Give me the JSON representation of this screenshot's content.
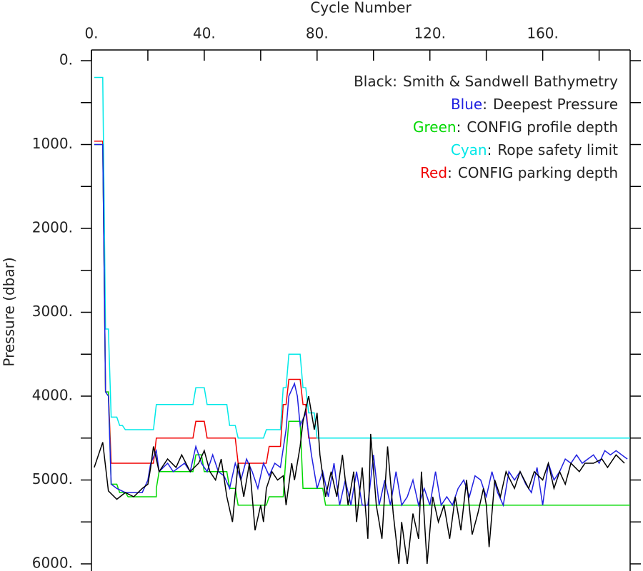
{
  "chart_data": {
    "type": "line",
    "x_label": "Cycle Number",
    "y_label": "Pressure (dbar)",
    "invert_y": true,
    "xlim": [
      0,
      191
    ],
    "ylim": [
      0,
      6000
    ],
    "xticks": [
      {
        "value": 0,
        "label": "0."
      },
      {
        "value": 40,
        "label": "40."
      },
      {
        "value": 80,
        "label": "80."
      },
      {
        "value": 120,
        "label": "120."
      },
      {
        "value": 160,
        "label": "160."
      }
    ],
    "xminorticks": [
      20,
      60,
      100,
      140,
      180
    ],
    "yticks": [
      {
        "value": 0,
        "label": "0."
      },
      {
        "value": 1000,
        "label": "1000."
      },
      {
        "value": 2000,
        "label": "2000."
      },
      {
        "value": 3000,
        "label": "3000."
      },
      {
        "value": 4000,
        "label": "4000."
      },
      {
        "value": 5000,
        "label": "5000."
      },
      {
        "value": 6000,
        "label": "6000."
      }
    ],
    "yminorticks": [
      500,
      1500,
      2500,
      3500,
      4500,
      5500
    ],
    "legend_separator": ":",
    "series": [
      {
        "name": "Smith & Sandwell Bathymetry",
        "color_word": "Black",
        "color": "#000000",
        "x": [
          1,
          4,
          6,
          9,
          12,
          15,
          18,
          20,
          21,
          22,
          24,
          27,
          30,
          32,
          35,
          38,
          40,
          42,
          44,
          46,
          48,
          50,
          52,
          54,
          56,
          58,
          60,
          61,
          62,
          64,
          66,
          68,
          69,
          71,
          72,
          74,
          75,
          77,
          79,
          80,
          81,
          83,
          85,
          87,
          89,
          91,
          93,
          94,
          96,
          98,
          99,
          101,
          103,
          105,
          107,
          109,
          110,
          112,
          114,
          116,
          117,
          119,
          121,
          123,
          125,
          127,
          129,
          131,
          133,
          135,
          137,
          139,
          140,
          141,
          143,
          145,
          147,
          150,
          152,
          155,
          157,
          160,
          162,
          164,
          166,
          168,
          170,
          173,
          175,
          178,
          181,
          183,
          186,
          189
        ],
        "values": [
          4850,
          4550,
          5130,
          5230,
          5150,
          5200,
          5100,
          5050,
          4850,
          4600,
          4900,
          4750,
          4850,
          4700,
          4900,
          4800,
          4650,
          4900,
          5000,
          4750,
          5200,
          5500,
          4800,
          5200,
          4800,
          5600,
          5300,
          5500,
          5100,
          4900,
          5000,
          4950,
          5300,
          4800,
          5000,
          4600,
          4300,
          4000,
          4400,
          4200,
          4700,
          5200,
          4900,
          5200,
          4700,
          5300,
          4900,
          5500,
          4850,
          5700,
          4450,
          5300,
          5700,
          4600,
          5400,
          6000,
          5500,
          6000,
          5400,
          5700,
          4900,
          6000,
          5200,
          5500,
          5300,
          5700,
          5200,
          5600,
          5000,
          5650,
          5400,
          5100,
          5300,
          5800,
          5000,
          5200,
          4900,
          5100,
          4900,
          5100,
          4900,
          5000,
          4800,
          5100,
          4900,
          5050,
          4800,
          4900,
          4800,
          4800,
          4750,
          4850,
          4700,
          4800
        ]
      },
      {
        "name": "Deepest Pressure",
        "color_word": "Blue",
        "color": "#2020e0",
        "x": [
          1,
          4,
          5,
          6,
          7,
          9,
          12,
          15,
          18,
          20,
          21,
          23,
          24,
          27,
          29,
          31,
          33,
          35,
          37,
          39,
          41,
          43,
          45,
          47,
          49,
          51,
          53,
          55,
          57,
          59,
          61,
          63,
          65,
          67,
          69,
          70,
          72,
          73,
          74,
          76,
          78,
          80,
          82,
          84,
          86,
          88,
          90,
          92,
          94,
          96,
          98,
          100,
          102,
          104,
          106,
          108,
          110,
          112,
          114,
          116,
          118,
          120,
          122,
          124,
          126,
          128,
          130,
          132,
          134,
          136,
          138,
          140,
          142,
          144,
          146,
          148,
          150,
          152,
          154,
          156,
          158,
          160,
          162,
          164,
          166,
          168,
          170,
          172,
          174,
          176,
          178,
          180,
          182,
          184,
          186,
          188,
          190
        ],
        "values": [
          1000,
          1000,
          3950,
          4000,
          5050,
          5100,
          5150,
          5150,
          5150,
          5000,
          4800,
          4650,
          4900,
          4800,
          4900,
          4850,
          4800,
          4900,
          4600,
          4800,
          4900,
          4700,
          4900,
          4950,
          5100,
          4800,
          5000,
          4750,
          4900,
          5100,
          4800,
          4950,
          4800,
          4850,
          4400,
          4000,
          3850,
          4000,
          4350,
          4200,
          4700,
          5100,
          4900,
          5200,
          4800,
          5300,
          5000,
          5300,
          4900,
          5300,
          5300,
          4700,
          5300,
          5000,
          5300,
          4900,
          5300,
          5200,
          5000,
          5300,
          5100,
          5300,
          4900,
          5300,
          5200,
          5300,
          5100,
          5000,
          5200,
          4950,
          5000,
          5200,
          4900,
          5150,
          5300,
          4900,
          5000,
          4900,
          5050,
          5150,
          4850,
          5300,
          4800,
          5000,
          4900,
          4750,
          4800,
          4700,
          4800,
          4750,
          4700,
          4800,
          4650,
          4700,
          4650,
          4700,
          4750
        ]
      },
      {
        "name": "CONFIG profile depth",
        "color_word": "Green",
        "color": "#00d800",
        "x": [
          1,
          4,
          5,
          6,
          7,
          9,
          10,
          12,
          13,
          22,
          23,
          23,
          24,
          36,
          37,
          39,
          40,
          48,
          49,
          51,
          52,
          62,
          63,
          68,
          69,
          70,
          74,
          75,
          82,
          83,
          191
        ],
        "values": [
          1000,
          1000,
          3950,
          3950,
          5050,
          5050,
          5150,
          5150,
          5200,
          5200,
          5200,
          5100,
          4900,
          4900,
          4700,
          4700,
          4900,
          4900,
          5100,
          5100,
          5300,
          5300,
          5200,
          5200,
          4700,
          4300,
          4300,
          5100,
          5100,
          5300,
          5300
        ]
      },
      {
        "name": "Rope safety limit",
        "color_word": "Cyan",
        "color": "#00e8e8",
        "x": [
          1,
          4,
          5,
          6,
          7,
          9,
          10,
          11,
          12,
          22,
          23,
          36,
          37,
          40,
          41,
          48,
          49,
          51,
          52,
          61,
          62,
          67,
          68,
          69,
          70,
          74,
          75,
          76,
          77,
          79,
          80,
          191
        ],
        "values": [
          200,
          200,
          3200,
          3200,
          4250,
          4250,
          4350,
          4350,
          4400,
          4400,
          4100,
          4100,
          3900,
          3900,
          4100,
          4100,
          4350,
          4350,
          4500,
          4500,
          4400,
          4400,
          3900,
          3900,
          3500,
          3500,
          3900,
          3900,
          4200,
          4200,
          4500,
          4500
        ]
      },
      {
        "name": "CONFIG parking depth",
        "color_word": "Red",
        "color": "#f00000",
        "x": [
          1,
          4,
          5,
          6,
          7,
          22,
          23,
          36,
          37,
          40,
          41,
          51,
          52,
          62,
          63,
          67,
          68,
          69,
          70,
          74,
          75,
          76,
          77,
          82,
          83,
          191
        ],
        "values": [
          960,
          960,
          3950,
          3950,
          4800,
          4800,
          4500,
          4500,
          4300,
          4300,
          4500,
          4500,
          4800,
          4800,
          4600,
          4600,
          4100,
          4100,
          3800,
          3800,
          4100,
          4100,
          4500,
          4500,
          4500,
          4500
        ]
      }
    ]
  }
}
